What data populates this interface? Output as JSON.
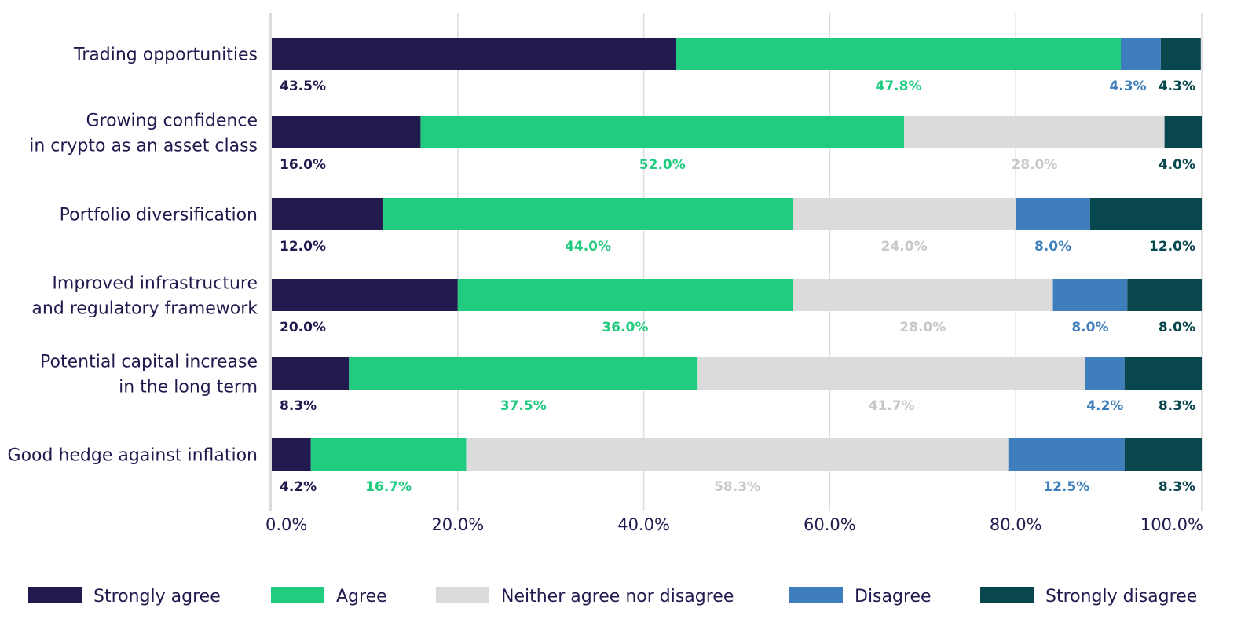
{
  "chart_data": {
    "type": "bar",
    "orientation": "horizontal",
    "stacked": "percent",
    "title": "",
    "xlabel": "",
    "ylabel": "",
    "xlim": [
      0,
      100
    ],
    "grid": true,
    "legend_position": "bottom",
    "x_ticks": [
      "0.0%",
      "20.0%",
      "40.0%",
      "60.0%",
      "80.0%",
      "100.0%"
    ],
    "categories": [
      [
        "Trading opportunities"
      ],
      [
        "Growing confidence",
        "in crypto as an asset class"
      ],
      [
        "Portfolio diversification"
      ],
      [
        "Improved infrastructure",
        "and regulatory framework"
      ],
      [
        "Potential capital increase",
        "in the long term"
      ],
      [
        "Good hedge against inflation"
      ]
    ],
    "series": [
      {
        "name": "Strongly agree",
        "color": "#211a4e",
        "label_color": "#211a4e",
        "values": [
          43.5,
          16.0,
          12.0,
          20.0,
          8.3,
          4.2
        ],
        "labels": [
          "43.5%",
          "16.0%",
          "12.0%",
          "20.0%",
          "8.3%",
          "4.2%"
        ]
      },
      {
        "name": "Agree",
        "color": "#21cc80",
        "label_color": "#21cc80",
        "values": [
          47.8,
          52.0,
          44.0,
          36.0,
          37.5,
          16.7
        ],
        "labels": [
          "47.8%",
          "52.0%",
          "44.0%",
          "36.0%",
          "37.5%",
          "16.7%"
        ]
      },
      {
        "name": "Neither agree nor disagree",
        "color": "#dbdbdb",
        "label_color": "#c8c8c8",
        "values": [
          0,
          28.0,
          24.0,
          28.0,
          41.7,
          58.3
        ],
        "labels": [
          "",
          "28.0%",
          "24.0%",
          "28.0%",
          "41.7%",
          "58.3%"
        ]
      },
      {
        "name": "Disagree",
        "color": "#3e7ebd",
        "label_color": "#3e7ebd",
        "values": [
          4.3,
          0,
          8.0,
          8.0,
          4.2,
          12.5
        ],
        "labels": [
          "4.3%",
          "",
          "8.0%",
          "8.0%",
          "4.2%",
          "12.5%"
        ]
      },
      {
        "name": "Strongly disagree",
        "color": "#07474d",
        "label_color": "#07474d",
        "values": [
          4.3,
          4.0,
          12.0,
          8.0,
          8.3,
          8.3
        ],
        "labels": [
          "4.3%",
          "4.0%",
          "12.0%",
          "8.0%",
          "8.3%",
          "8.3%"
        ]
      }
    ]
  }
}
